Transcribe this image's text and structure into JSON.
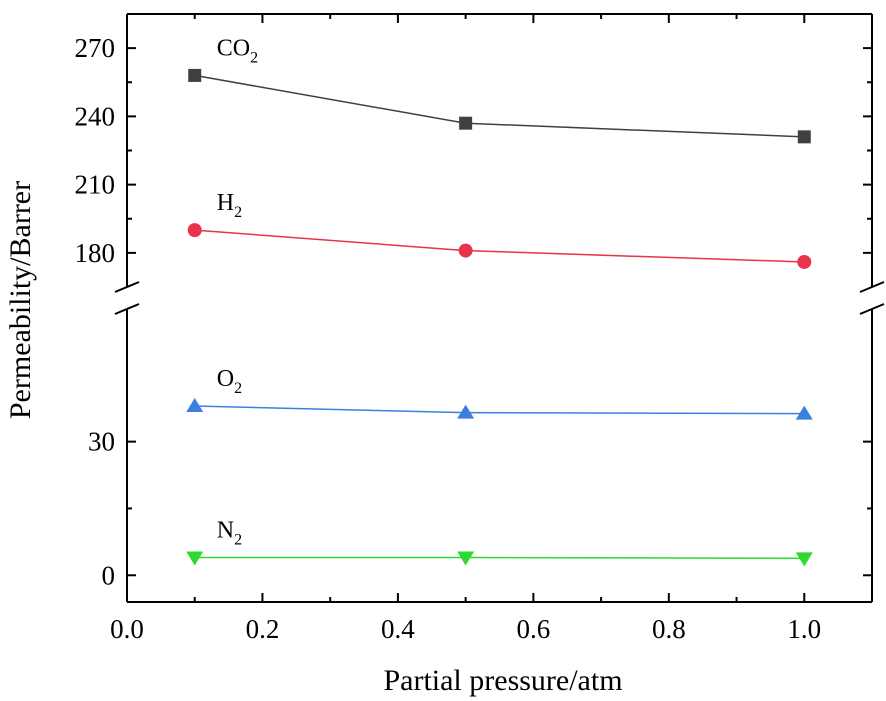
{
  "chart_data": {
    "type": "line",
    "xlabel": "Partial pressure/atm",
    "ylabel": "Permeability/Barrer",
    "xlim": [
      0.0,
      1.1
    ],
    "x_ticks": [
      "0.0",
      "0.2",
      "0.4",
      "0.6",
      "0.8",
      "1.0"
    ],
    "axis_break": true,
    "upper_panel": {
      "ylim": [
        165,
        285
      ],
      "y_ticks": [
        "180",
        "210",
        "240",
        "270"
      ]
    },
    "lower_panel": {
      "ylim": [
        -6,
        60
      ],
      "y_ticks": [
        "0",
        "30"
      ]
    },
    "grid": false,
    "series": [
      {
        "name": "CO2",
        "label_main": "CO",
        "label_sub": "2",
        "panel": "upper",
        "color": "#404040",
        "marker": "square",
        "x": [
          0.1,
          0.5,
          1.0
        ],
        "values": [
          258,
          237,
          231
        ]
      },
      {
        "name": "H2",
        "label_main": "H",
        "label_sub": "2",
        "panel": "upper",
        "color": "#e8334a",
        "marker": "circle",
        "x": [
          0.1,
          0.5,
          1.0
        ],
        "values": [
          190,
          181,
          176
        ]
      },
      {
        "name": "O2",
        "label_main": "O",
        "label_sub": "2",
        "panel": "lower",
        "color": "#3b7fe0",
        "marker": "triangle-up",
        "x": [
          0.1,
          0.5,
          1.0
        ],
        "values": [
          38,
          36.5,
          36.3
        ]
      },
      {
        "name": "N2",
        "label_main": "N",
        "label_sub": "2",
        "panel": "lower",
        "color": "#2fd92f",
        "marker": "triangle-down",
        "x": [
          0.1,
          0.5,
          1.0
        ],
        "values": [
          4,
          4,
          3.8
        ]
      }
    ]
  }
}
